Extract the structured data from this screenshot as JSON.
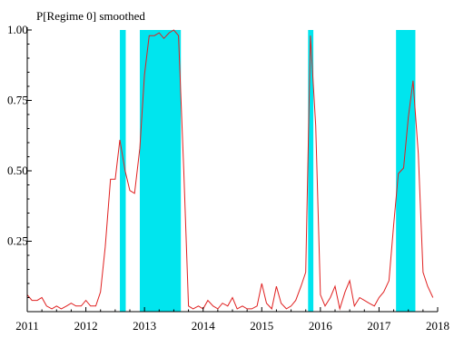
{
  "chart_data": {
    "type": "line",
    "title": "P[Regime 0] smoothed",
    "xlabel": "",
    "ylabel": "",
    "xlim": [
      2011.0,
      2018.0
    ],
    "ylim": [
      0.0,
      1.0
    ],
    "grid": false,
    "x_ticks": [
      {
        "value": 2011,
        "label": "2011"
      },
      {
        "value": 2012,
        "label": "2012"
      },
      {
        "value": 2013,
        "label": "2013"
      },
      {
        "value": 2014,
        "label": "2014"
      },
      {
        "value": 2015,
        "label": "2015"
      },
      {
        "value": 2016,
        "label": "2016"
      },
      {
        "value": 2017,
        "label": "2017"
      },
      {
        "value": 2018,
        "label": "2018"
      }
    ],
    "y_ticks": [
      {
        "value": 0.25,
        "label": "0.25"
      },
      {
        "value": 0.5,
        "label": "0.50"
      },
      {
        "value": 0.75,
        "label": "0.75"
      },
      {
        "value": 1.0,
        "label": "1.00"
      }
    ],
    "shaded_regions": [
      {
        "start": 2012.58,
        "end": 2012.68
      },
      {
        "start": 2012.92,
        "end": 2013.62
      },
      {
        "start": 2015.79,
        "end": 2015.88
      },
      {
        "start": 2017.29,
        "end": 2017.62
      }
    ],
    "series": [
      {
        "color": "#e02020",
        "points": [
          [
            2011.0,
            0.06
          ],
          [
            2011.08,
            0.04
          ],
          [
            2011.17,
            0.04
          ],
          [
            2011.25,
            0.05
          ],
          [
            2011.33,
            0.02
          ],
          [
            2011.42,
            0.01
          ],
          [
            2011.5,
            0.02
          ],
          [
            2011.58,
            0.01
          ],
          [
            2011.67,
            0.02
          ],
          [
            2011.75,
            0.03
          ],
          [
            2011.83,
            0.02
          ],
          [
            2011.92,
            0.02
          ],
          [
            2012.0,
            0.04
          ],
          [
            2012.08,
            0.02
          ],
          [
            2012.17,
            0.02
          ],
          [
            2012.25,
            0.07
          ],
          [
            2012.33,
            0.23
          ],
          [
            2012.42,
            0.47
          ],
          [
            2012.5,
            0.47
          ],
          [
            2012.58,
            0.61
          ],
          [
            2012.67,
            0.5
          ],
          [
            2012.75,
            0.43
          ],
          [
            2012.83,
            0.42
          ],
          [
            2012.92,
            0.58
          ],
          [
            2013.0,
            0.84
          ],
          [
            2013.08,
            0.98
          ],
          [
            2013.17,
            0.98
          ],
          [
            2013.25,
            0.99
          ],
          [
            2013.33,
            0.97
          ],
          [
            2013.42,
            0.99
          ],
          [
            2013.5,
            1.0
          ],
          [
            2013.58,
            0.98
          ],
          [
            2013.67,
            0.5
          ],
          [
            2013.75,
            0.02
          ],
          [
            2013.83,
            0.01
          ],
          [
            2013.92,
            0.02
          ],
          [
            2014.0,
            0.01
          ],
          [
            2014.08,
            0.04
          ],
          [
            2014.17,
            0.02
          ],
          [
            2014.25,
            0.01
          ],
          [
            2014.33,
            0.03
          ],
          [
            2014.42,
            0.02
          ],
          [
            2014.5,
            0.05
          ],
          [
            2014.58,
            0.01
          ],
          [
            2014.67,
            0.02
          ],
          [
            2014.75,
            0.01
          ],
          [
            2014.83,
            0.01
          ],
          [
            2014.92,
            0.02
          ],
          [
            2015.0,
            0.1
          ],
          [
            2015.08,
            0.03
          ],
          [
            2015.17,
            0.01
          ],
          [
            2015.25,
            0.09
          ],
          [
            2015.33,
            0.03
          ],
          [
            2015.42,
            0.01
          ],
          [
            2015.5,
            0.02
          ],
          [
            2015.58,
            0.04
          ],
          [
            2015.67,
            0.09
          ],
          [
            2015.75,
            0.14
          ],
          [
            2015.83,
            0.98
          ],
          [
            2015.92,
            0.66
          ],
          [
            2016.0,
            0.06
          ],
          [
            2016.08,
            0.02
          ],
          [
            2016.17,
            0.05
          ],
          [
            2016.25,
            0.09
          ],
          [
            2016.33,
            0.01
          ],
          [
            2016.42,
            0.07
          ],
          [
            2016.5,
            0.11
          ],
          [
            2016.58,
            0.02
          ],
          [
            2016.67,
            0.05
          ],
          [
            2016.75,
            0.04
          ],
          [
            2016.83,
            0.03
          ],
          [
            2016.92,
            0.02
          ],
          [
            2017.0,
            0.05
          ],
          [
            2017.08,
            0.07
          ],
          [
            2017.17,
            0.11
          ],
          [
            2017.25,
            0.31
          ],
          [
            2017.33,
            0.49
          ],
          [
            2017.42,
            0.51
          ],
          [
            2017.5,
            0.69
          ],
          [
            2017.58,
            0.82
          ],
          [
            2017.67,
            0.56
          ],
          [
            2017.75,
            0.14
          ],
          [
            2017.83,
            0.09
          ],
          [
            2017.92,
            0.05
          ]
        ]
      }
    ]
  }
}
